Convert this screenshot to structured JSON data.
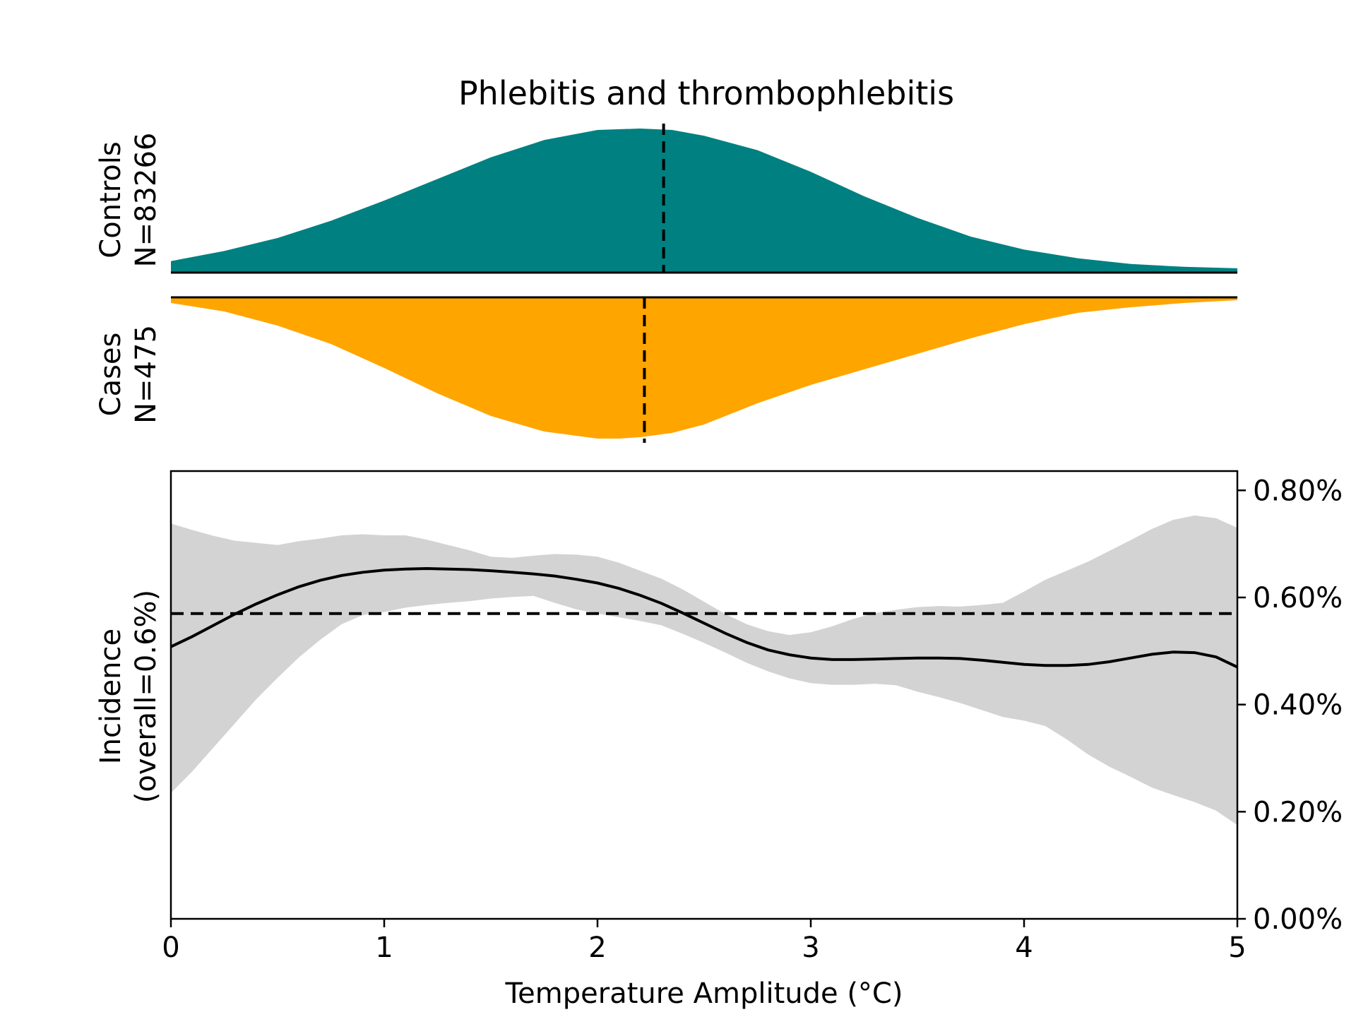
{
  "chart_data": {
    "title": "Phlebitis and thrombophlebitis",
    "xlabel": "Temperature Amplitude (°C)",
    "x_ticks": [
      "0",
      "1",
      "2",
      "3",
      "4",
      "5"
    ],
    "xlim": [
      0,
      5
    ],
    "distributions": [
      {
        "name": "controls",
        "label": [
          "Controls",
          "N=83266"
        ],
        "color": "#008080",
        "direction": "up",
        "median": 2.31,
        "x": [
          0,
          0.25,
          0.5,
          0.75,
          1.0,
          1.25,
          1.5,
          1.75,
          2.0,
          2.2,
          2.35,
          2.5,
          2.75,
          3.0,
          3.25,
          3.5,
          3.75,
          4.0,
          4.25,
          4.5,
          4.75,
          5.0
        ],
        "density": [
          0.08,
          0.15,
          0.24,
          0.36,
          0.5,
          0.65,
          0.8,
          0.92,
          0.99,
          1.0,
          0.99,
          0.95,
          0.85,
          0.7,
          0.53,
          0.38,
          0.25,
          0.16,
          0.1,
          0.06,
          0.04,
          0.03
        ]
      },
      {
        "name": "cases",
        "label": [
          "Cases",
          "N=475"
        ],
        "color": "#FFA500",
        "direction": "down",
        "median": 2.22,
        "x": [
          0,
          0.25,
          0.5,
          0.75,
          1.0,
          1.25,
          1.5,
          1.75,
          2.0,
          2.1,
          2.2,
          2.35,
          2.5,
          2.75,
          3.0,
          3.25,
          3.5,
          3.75,
          4.0,
          4.25,
          4.5,
          4.75,
          5.0
        ],
        "density": [
          0.04,
          0.1,
          0.2,
          0.33,
          0.5,
          0.68,
          0.84,
          0.95,
          1.0,
          1.0,
          0.99,
          0.96,
          0.9,
          0.75,
          0.62,
          0.51,
          0.4,
          0.29,
          0.19,
          0.11,
          0.07,
          0.04,
          0.02
        ]
      }
    ],
    "incidence": {
      "ylabel": [
        "Incidence",
        "(overall=0.6%)"
      ],
      "y_ticks": [
        "0.00%",
        "0.20%",
        "0.40%",
        "0.60%",
        "0.80%"
      ],
      "y_tick_values": [
        0.0,
        0.2,
        0.4,
        0.6,
        0.8
      ],
      "ylim": [
        0,
        0.836
      ],
      "overall": 0.57,
      "x": [
        0,
        0.1,
        0.2,
        0.3,
        0.4,
        0.5,
        0.6,
        0.7,
        0.8,
        0.9,
        1.0,
        1.1,
        1.2,
        1.3,
        1.4,
        1.5,
        1.6,
        1.7,
        1.8,
        1.9,
        2.0,
        2.1,
        2.2,
        2.3,
        2.4,
        2.5,
        2.6,
        2.7,
        2.8,
        2.9,
        3.0,
        3.1,
        3.2,
        3.3,
        3.4,
        3.5,
        3.6,
        3.7,
        3.8,
        3.9,
        4.0,
        4.1,
        4.2,
        4.3,
        4.4,
        4.5,
        4.6,
        4.7,
        4.8,
        4.9,
        5.0
      ],
      "mean": [
        0.508,
        0.527,
        0.548,
        0.569,
        0.588,
        0.605,
        0.62,
        0.632,
        0.641,
        0.647,
        0.651,
        0.653,
        0.654,
        0.653,
        0.652,
        0.65,
        0.647,
        0.644,
        0.64,
        0.634,
        0.627,
        0.617,
        0.604,
        0.589,
        0.571,
        0.552,
        0.533,
        0.516,
        0.502,
        0.493,
        0.487,
        0.484,
        0.484,
        0.485,
        0.486,
        0.487,
        0.487,
        0.486,
        0.483,
        0.479,
        0.475,
        0.473,
        0.473,
        0.475,
        0.48,
        0.487,
        0.494,
        0.498,
        0.497,
        0.489,
        0.47
      ],
      "upper": [
        0.738,
        0.726,
        0.715,
        0.706,
        0.702,
        0.698,
        0.705,
        0.71,
        0.716,
        0.718,
        0.716,
        0.716,
        0.708,
        0.698,
        0.688,
        0.676,
        0.674,
        0.678,
        0.681,
        0.68,
        0.676,
        0.665,
        0.65,
        0.635,
        0.615,
        0.592,
        0.569,
        0.55,
        0.537,
        0.53,
        0.535,
        0.546,
        0.56,
        0.571,
        0.577,
        0.582,
        0.584,
        0.583,
        0.586,
        0.59,
        0.611,
        0.633,
        0.65,
        0.667,
        0.687,
        0.707,
        0.728,
        0.745,
        0.753,
        0.748,
        0.73
      ],
      "lower": [
        0.235,
        0.275,
        0.32,
        0.365,
        0.41,
        0.45,
        0.488,
        0.521,
        0.55,
        0.567,
        0.573,
        0.581,
        0.586,
        0.59,
        0.593,
        0.598,
        0.601,
        0.603,
        0.59,
        0.578,
        0.57,
        0.563,
        0.556,
        0.548,
        0.532,
        0.515,
        0.497,
        0.478,
        0.462,
        0.449,
        0.44,
        0.437,
        0.437,
        0.439,
        0.436,
        0.424,
        0.414,
        0.403,
        0.39,
        0.377,
        0.37,
        0.36,
        0.335,
        0.307,
        0.284,
        0.265,
        0.245,
        0.231,
        0.218,
        0.202,
        0.175
      ]
    }
  }
}
